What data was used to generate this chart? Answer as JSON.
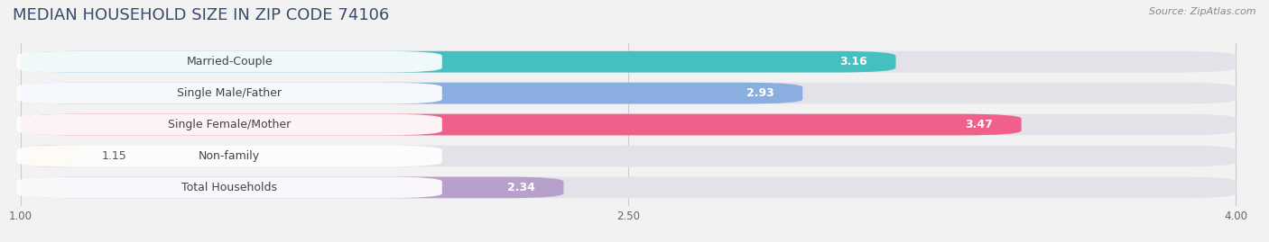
{
  "title": "MEDIAN HOUSEHOLD SIZE IN ZIP CODE 74106",
  "source": "Source: ZipAtlas.com",
  "categories": [
    "Married-Couple",
    "Single Male/Father",
    "Single Female/Mother",
    "Non-family",
    "Total Households"
  ],
  "values": [
    3.16,
    2.93,
    3.47,
    1.15,
    2.34
  ],
  "bar_colors": [
    "#45bfbf",
    "#8aaee0",
    "#f0608a",
    "#f5c98a",
    "#b8a0cc"
  ],
  "xlim_min": 1.0,
  "xlim_max": 4.0,
  "xticks": [
    1.0,
    2.5,
    4.0
  ],
  "xtick_labels": [
    "1.00",
    "2.50",
    "4.00"
  ],
  "background_color": "#f2f2f2",
  "bar_bg_color": "#e2e2e8",
  "pill_bg_color": "#ffffff",
  "title_color": "#3a4a6b",
  "title_fontsize": 13,
  "label_fontsize": 9,
  "value_fontsize": 9,
  "source_fontsize": 8
}
